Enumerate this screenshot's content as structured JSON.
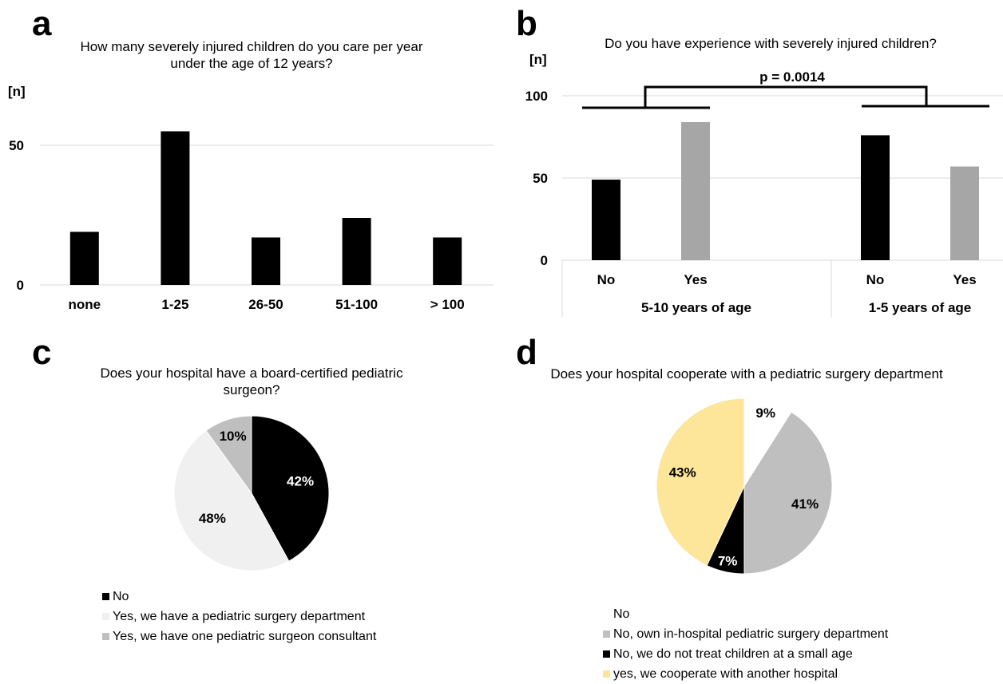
{
  "panels": {
    "a": {
      "letter": "a",
      "title_line1": "How many severely injured children do you care per year",
      "title_line2": "under the age of 12 years?"
    },
    "b": {
      "letter": "b",
      "title": "Do you have experience with severely injured children?"
    },
    "c": {
      "letter": "c",
      "title_line1": "Does your hospital have a board-certified pediatric",
      "title_line2": "surgeon?"
    },
    "d": {
      "letter": "d",
      "title": "Does your hospital cooperate with a pediatric surgery department"
    }
  },
  "chart_data": [
    {
      "id": "a",
      "type": "bar",
      "ylabel": "[n]",
      "categories": [
        "none",
        "1-25",
        "26-50",
        "51-100",
        "> 100"
      ],
      "values": [
        19,
        55,
        17,
        24,
        17
      ],
      "yticks": [
        0,
        50
      ],
      "ylim": [
        0,
        60
      ],
      "grid": true,
      "color": "#000000"
    },
    {
      "id": "b",
      "type": "bar",
      "ylabel": "[n]",
      "groups": [
        "5-10 years of age",
        "1-5 years of age"
      ],
      "categories": [
        "No",
        "Yes",
        "No",
        "Yes"
      ],
      "values": [
        49,
        84,
        76,
        57
      ],
      "colors": [
        "#000000",
        "#a6a6a6",
        "#000000",
        "#a6a6a6"
      ],
      "yticks": [
        0,
        50,
        100
      ],
      "ylim": [
        0,
        100
      ],
      "grid": true,
      "annotation": "p = 0.0014"
    },
    {
      "id": "c",
      "type": "pie",
      "slices": [
        {
          "label": "No",
          "value": 42,
          "text": "42%",
          "color": "#000000",
          "text_color": "#ffffff"
        },
        {
          "label": "Yes, we have a pediatric surgery department",
          "value": 48,
          "text": "48%",
          "color": "#f0f0f0",
          "text_color": "#000000"
        },
        {
          "label": "Yes, we have one pediatric surgeon consultant",
          "value": 10,
          "text": "10%",
          "color": "#bfbfbf",
          "text_color": "#000000"
        }
      ]
    },
    {
      "id": "d",
      "type": "pie",
      "slices": [
        {
          "label": "No",
          "value": 9,
          "text": "9%",
          "color": "#ffffff",
          "text_color": "#000000"
        },
        {
          "label": "No, own in-hospital pediatric surgery department",
          "value": 41,
          "text": "41%",
          "color": "#bfbfbf",
          "text_color": "#000000"
        },
        {
          "label": "No, we do not treat children at a small age",
          "value": 7,
          "text": "7%",
          "color": "#000000",
          "text_color": "#ffffff"
        },
        {
          "label": "yes, we cooperate with another hospital",
          "value": 43,
          "text": "43%",
          "color": "#fde59a",
          "text_color": "#000000"
        }
      ]
    }
  ]
}
